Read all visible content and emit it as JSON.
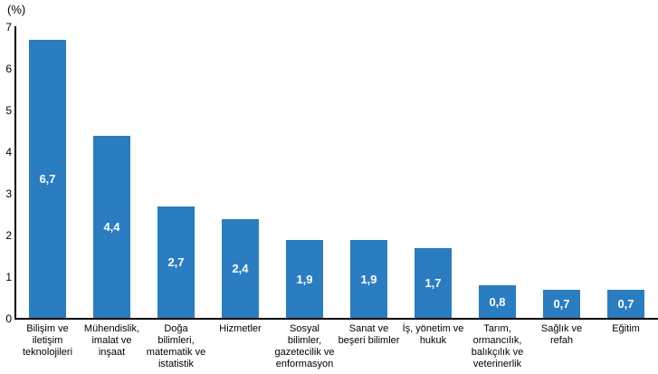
{
  "chart_data": {
    "type": "bar",
    "title": "",
    "ylabel": "(%)",
    "xlabel": "",
    "ylim": [
      0,
      7
    ],
    "yticks": [
      0,
      1,
      2,
      3,
      4,
      5,
      6,
      7
    ],
    "grid": false,
    "legend": null,
    "bar_color": "#2A7DC1",
    "value_label_color": "#FFFFFF",
    "axis_color": "#000000",
    "categories": [
      "Bilişim ve iletişim teknolojileri",
      "Mühendislik, imalat ve inşaat",
      "Doğa bilimleri, matematik ve istatistik",
      "Hizmetler",
      "Sosyal bilimler, gazetecilik ve enformasyon",
      "Sanat ve beşeri bilimler",
      "İş, yönetim ve hukuk",
      "Tarım, ormancılık, balıkçılık ve veterinerlik",
      "Sağlık ve refah",
      "Eğitim"
    ],
    "category_lines": [
      [
        "Bilişim ve",
        "iletişim",
        "teknolojileri"
      ],
      [
        "Mühendislik,",
        "imalat ve",
        "inşaat"
      ],
      [
        "Doğa bilimleri,",
        "matematik ve",
        "istatistik"
      ],
      [
        "Hizmetler"
      ],
      [
        "Sosyal",
        "bilimler,",
        "gazetecilik ve",
        "enformasyon"
      ],
      [
        "Sanat ve",
        "beşeri bilimler"
      ],
      [
        "İş, yönetim ve",
        "hukuk"
      ],
      [
        "Tarım,",
        "ormancılık,",
        "balıkçılık ve",
        "veterinerlik"
      ],
      [
        "Sağlık ve",
        "refah"
      ],
      [
        "Eğitim"
      ]
    ],
    "values": [
      6.7,
      4.4,
      2.7,
      2.4,
      1.9,
      1.9,
      1.7,
      0.8,
      0.7,
      0.7
    ],
    "value_labels": [
      "6,7",
      "4,4",
      "2,7",
      "2,4",
      "1,9",
      "1,9",
      "1,7",
      "0,8",
      "0,7",
      "0,7"
    ]
  }
}
